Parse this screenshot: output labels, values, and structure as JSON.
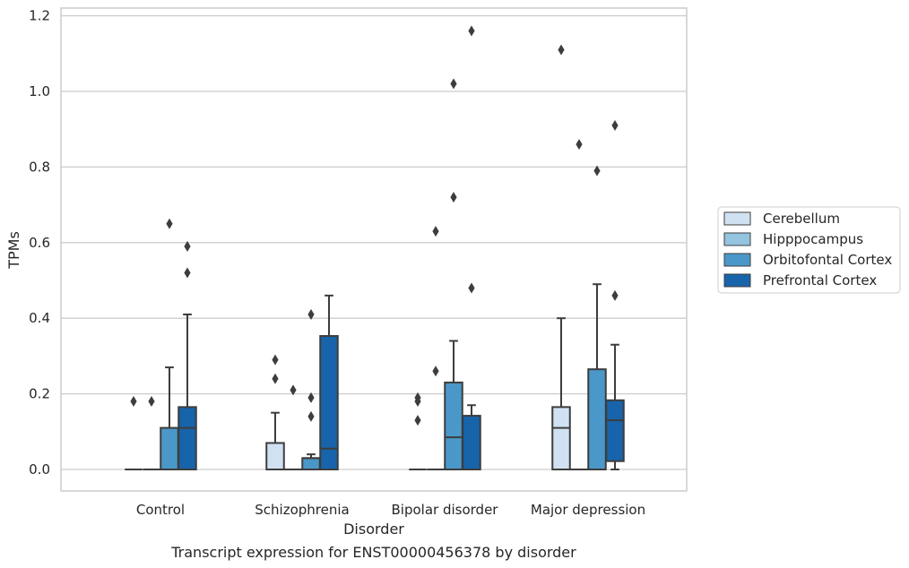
{
  "caption": "Transcript expression for ENST00000456378 by disorder",
  "chart_data": {
    "type": "box",
    "xlabel": "Disorder",
    "ylabel": "TPMs",
    "ylim": [
      -0.055,
      1.22
    ],
    "yticks": [
      0.0,
      0.2,
      0.4,
      0.6,
      0.8,
      1.0,
      1.2
    ],
    "ytick_labels": [
      "0.0",
      "0.2",
      "0.4",
      "0.6",
      "0.8",
      "1.0",
      "1.2"
    ],
    "grid": "horizontal",
    "legend_position": "right",
    "categories": [
      "Control",
      "Schizophrenia",
      "Bipolar disorder",
      "Major depression"
    ],
    "series": [
      {
        "name": "Cerebellum",
        "color": "#d0e1f2",
        "boxes": [
          {
            "q1": 0.0,
            "median": 0.0,
            "q3": 0.0,
            "whisker_low": 0.0,
            "whisker_high": 0.0,
            "outliers": [
              0.18
            ]
          },
          {
            "q1": 0.0,
            "median": 0.0,
            "q3": 0.07,
            "whisker_low": 0.0,
            "whisker_high": 0.15,
            "outliers": [
              0.24,
              0.29
            ]
          },
          {
            "q1": 0.0,
            "median": 0.0,
            "q3": 0.0,
            "whisker_low": 0.0,
            "whisker_high": 0.0,
            "outliers": [
              0.13,
              0.18,
              0.19
            ]
          },
          {
            "q1": 0.0,
            "median": 0.11,
            "q3": 0.165,
            "whisker_low": 0.0,
            "whisker_high": 0.4,
            "outliers": [
              1.11
            ]
          }
        ]
      },
      {
        "name": "Hipppocampus",
        "color": "#94c4df",
        "boxes": [
          {
            "q1": 0.0,
            "median": 0.0,
            "q3": 0.0,
            "whisker_low": 0.0,
            "whisker_high": 0.0,
            "outliers": [
              0.18
            ]
          },
          {
            "q1": 0.0,
            "median": 0.0,
            "q3": 0.0,
            "whisker_low": 0.0,
            "whisker_high": 0.0,
            "outliers": [
              0.21
            ]
          },
          {
            "q1": 0.0,
            "median": 0.0,
            "q3": 0.0,
            "whisker_low": 0.0,
            "whisker_high": 0.0,
            "outliers": [
              0.26,
              0.63
            ]
          },
          {
            "q1": 0.0,
            "median": 0.0,
            "q3": 0.0,
            "whisker_low": 0.0,
            "whisker_high": 0.0,
            "outliers": [
              0.86
            ]
          }
        ]
      },
      {
        "name": "Orbitofontal Cortex",
        "color": "#4a98c9",
        "boxes": [
          {
            "q1": 0.0,
            "median": 0.0,
            "q3": 0.11,
            "whisker_low": 0.0,
            "whisker_high": 0.27,
            "outliers": [
              0.65
            ]
          },
          {
            "q1": 0.0,
            "median": 0.03,
            "q3": 0.03,
            "whisker_low": 0.0,
            "whisker_high": 0.04,
            "outliers": [
              0.14,
              0.19,
              0.41
            ]
          },
          {
            "q1": 0.0,
            "median": 0.085,
            "q3": 0.23,
            "whisker_low": 0.0,
            "whisker_high": 0.34,
            "outliers": [
              0.72,
              1.02
            ]
          },
          {
            "q1": 0.0,
            "median": 0.0,
            "q3": 0.265,
            "whisker_low": 0.0,
            "whisker_high": 0.49,
            "outliers": [
              0.79
            ]
          }
        ]
      },
      {
        "name": "Prefrontal Cortex",
        "color": "#1764ab",
        "boxes": [
          {
            "q1": 0.0,
            "median": 0.11,
            "q3": 0.165,
            "whisker_low": 0.0,
            "whisker_high": 0.41,
            "outliers": [
              0.52,
              0.59
            ]
          },
          {
            "q1": 0.0,
            "median": 0.055,
            "q3": 0.353,
            "whisker_low": 0.0,
            "whisker_high": 0.46,
            "outliers": []
          },
          {
            "q1": 0.0,
            "median": 0.0,
            "q3": 0.142,
            "whisker_low": 0.0,
            "whisker_high": 0.17,
            "outliers": [
              0.48,
              1.16
            ]
          },
          {
            "q1": 0.022,
            "median": 0.13,
            "q3": 0.183,
            "whisker_low": 0.0,
            "whisker_high": 0.33,
            "outliers": [
              0.46,
              0.91
            ]
          }
        ]
      }
    ]
  }
}
